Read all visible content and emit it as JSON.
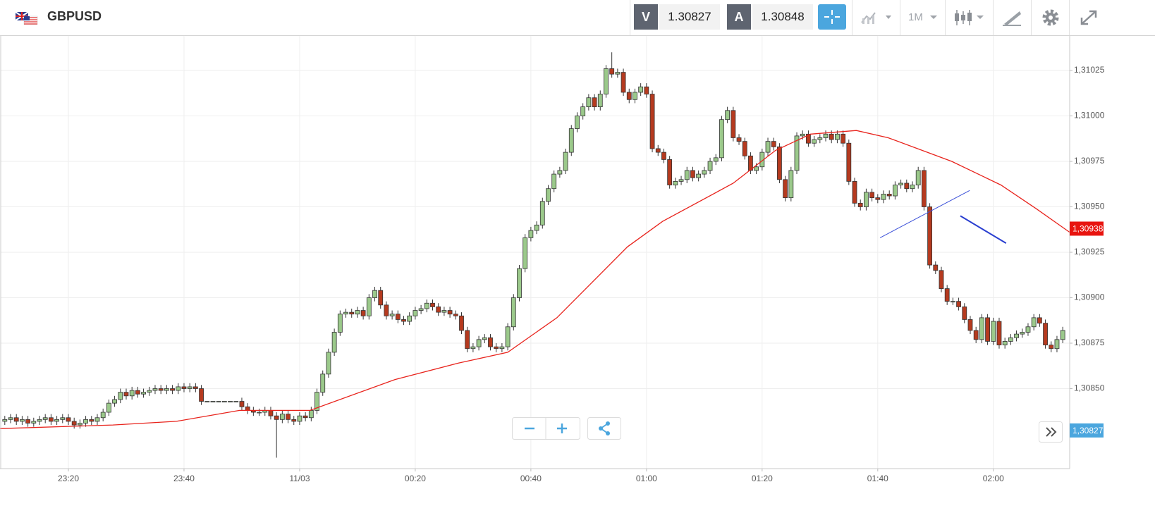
{
  "header": {
    "symbol": "GBPUSD",
    "bid_label": "V",
    "bid": 1.30827,
    "ask_label": "A",
    "ask": 1.30848,
    "timeframe": "1M"
  },
  "chart_data": {
    "type": "candlestick",
    "open": [
      1.30832,
      1.30833,
      1.30834,
      1.30832,
      1.30833,
      1.30831,
      1.30832,
      1.30833,
      1.30834,
      1.30832,
      1.30833,
      1.30834,
      1.30832,
      1.3083,
      1.30831,
      1.30833,
      1.30832,
      1.30834,
      1.30837,
      1.30842,
      1.30844,
      1.30848,
      1.30846,
      1.30849,
      1.30847,
      1.30848,
      1.30849,
      1.3085,
      1.30849,
      1.3085,
      1.30849,
      1.30851,
      1.3085,
      1.30851,
      1.3085,
      1.30843,
      1.30843,
      1.30843,
      1.30843,
      1.30843,
      1.30843,
      1.30843,
      1.3084,
      1.30838,
      1.30837,
      1.30837,
      1.30838,
      1.30835,
      1.30833,
      1.30836,
      1.30833,
      1.30832,
      1.30835,
      1.30834,
      1.30838,
      1.30848,
      1.30858,
      1.3087,
      1.30881,
      1.30891,
      1.30892,
      1.30891,
      1.30893,
      1.3089,
      1.309,
      1.30904,
      1.30896,
      1.3089,
      1.30891,
      1.30888,
      1.30887,
      1.3089,
      1.30893,
      1.30894,
      1.30897,
      1.30895,
      1.30892,
      1.30893,
      1.30891,
      1.3089,
      1.30882,
      1.30872,
      1.30873,
      1.30877,
      1.30878,
      1.30873,
      1.30872,
      1.30873,
      1.30884,
      1.309,
      1.30916,
      1.30933,
      1.30937,
      1.3094,
      1.30953,
      1.3096,
      1.30968,
      1.3097,
      1.3098,
      1.30993,
      1.31,
      1.31005,
      1.3101,
      1.31005,
      1.31012,
      1.31026,
      1.31023,
      1.31024,
      1.31013,
      1.31009,
      1.31013,
      1.31016,
      1.31012,
      1.30982,
      1.3098,
      1.30976,
      1.30962,
      1.30964,
      1.30965,
      1.3097,
      1.30966,
      1.30968,
      1.3097,
      1.30975,
      1.30977,
      1.30998,
      1.31003,
      1.30988,
      1.30986,
      1.30978,
      1.3097,
      1.30972,
      1.3098,
      1.30986,
      1.30983,
      1.30965,
      1.30955,
      1.3097,
      1.30989,
      1.3099,
      1.30985,
      1.30987,
      1.30988,
      1.3099,
      1.30987,
      1.3099,
      1.30985,
      1.30964,
      1.30952,
      1.3095,
      1.30958,
      1.30955,
      1.30954,
      1.30957,
      1.30956,
      1.30962,
      1.30963,
      1.3096,
      1.30962,
      1.3097,
      1.3095,
      1.30918,
      1.30915,
      1.30905,
      1.30898,
      1.30898,
      1.30895,
      1.30888,
      1.30882,
      1.30877,
      1.30889,
      1.30876,
      1.30887,
      1.30874,
      1.30876,
      1.30878,
      1.3088,
      1.30881,
      1.30884,
      1.30889,
      1.30886,
      1.30874,
      1.30872,
      1.30877
    ],
    "high": [
      1.30835,
      1.30836,
      1.30836,
      1.30835,
      1.30835,
      1.30834,
      1.30835,
      1.30836,
      1.30836,
      1.30835,
      1.30836,
      1.30836,
      1.30834,
      1.30833,
      1.30835,
      1.30835,
      1.30836,
      1.30839,
      1.30844,
      1.30846,
      1.3085,
      1.3085,
      1.30851,
      1.30851,
      1.3085,
      1.30851,
      1.30852,
      1.30852,
      1.30852,
      1.30852,
      1.30853,
      1.30853,
      1.30853,
      1.30853,
      1.30852,
      1.30843,
      1.30843,
      1.30843,
      1.30843,
      1.30843,
      1.30843,
      1.30845,
      1.30842,
      1.3084,
      1.30839,
      1.3084,
      1.3084,
      1.30837,
      1.30838,
      1.30838,
      1.30835,
      1.30837,
      1.30837,
      1.3084,
      1.3085,
      1.3086,
      1.30872,
      1.30883,
      1.30893,
      1.30894,
      1.30894,
      1.30895,
      1.30895,
      1.30902,
      1.30906,
      1.30906,
      1.30898,
      1.30893,
      1.30893,
      1.3089,
      1.30892,
      1.30895,
      1.30896,
      1.30899,
      1.30899,
      1.30897,
      1.30895,
      1.30895,
      1.30893,
      1.30892,
      1.30884,
      1.30875,
      1.30879,
      1.3088,
      1.3088,
      1.30875,
      1.30875,
      1.30886,
      1.30902,
      1.30918,
      1.30935,
      1.30939,
      1.30942,
      1.30955,
      1.30962,
      1.3097,
      1.30972,
      1.30982,
      1.30995,
      1.31002,
      1.31007,
      1.31012,
      1.31012,
      1.31014,
      1.31028,
      1.31035,
      1.31026,
      1.31026,
      1.31015,
      1.31015,
      1.31018,
      1.31018,
      1.31014,
      1.30984,
      1.30982,
      1.30978,
      1.30966,
      1.30967,
      1.30972,
      1.30972,
      1.3097,
      1.30972,
      1.30977,
      1.30979,
      1.31,
      1.31005,
      1.31005,
      1.3099,
      1.30988,
      1.3098,
      1.30974,
      1.30982,
      1.30988,
      1.30988,
      1.30985,
      1.30967,
      1.30972,
      1.30991,
      1.30992,
      1.30992,
      1.30989,
      1.3099,
      1.30992,
      1.30992,
      1.30992,
      1.30992,
      1.30987,
      1.30966,
      1.30954,
      1.3096,
      1.3096,
      1.30957,
      1.30959,
      1.30959,
      1.30964,
      1.30965,
      1.30965,
      1.30964,
      1.30972,
      1.30972,
      1.30952,
      1.3092,
      1.30917,
      1.30907,
      1.309,
      1.309,
      1.30897,
      1.3089,
      1.30884,
      1.30891,
      1.30891,
      1.30889,
      1.30889,
      1.30878,
      1.3088,
      1.30882,
      1.30883,
      1.30886,
      1.30891,
      1.30891,
      1.30888,
      1.30876,
      1.30879,
      1.30884
    ],
    "low": [
      1.3083,
      1.30831,
      1.3083,
      1.3083,
      1.30829,
      1.30829,
      1.3083,
      1.30831,
      1.3083,
      1.3083,
      1.30831,
      1.3083,
      1.30828,
      1.30828,
      1.30829,
      1.3083,
      1.3083,
      1.30832,
      1.30835,
      1.3084,
      1.30842,
      1.30844,
      1.30844,
      1.30845,
      1.30845,
      1.30846,
      1.30847,
      1.30847,
      1.30847,
      1.30847,
      1.30847,
      1.30848,
      1.30848,
      1.30848,
      1.30841,
      1.30843,
      1.30843,
      1.30843,
      1.30843,
      1.30843,
      1.30843,
      1.30838,
      1.30836,
      1.30835,
      1.30835,
      1.30835,
      1.30833,
      1.30812,
      1.30831,
      1.30831,
      1.3083,
      1.3083,
      1.30832,
      1.30832,
      1.30836,
      1.30846,
      1.30856,
      1.30868,
      1.30879,
      1.30889,
      1.30889,
      1.30889,
      1.30888,
      1.30888,
      1.30898,
      1.30894,
      1.30888,
      1.30888,
      1.30886,
      1.30885,
      1.30885,
      1.30888,
      1.30891,
      1.30892,
      1.30893,
      1.3089,
      1.3089,
      1.30889,
      1.30888,
      1.3088,
      1.3087,
      1.3087,
      1.30871,
      1.30875,
      1.30871,
      1.3087,
      1.3087,
      1.30871,
      1.30882,
      1.30898,
      1.30914,
      1.30931,
      1.30935,
      1.30938,
      1.30951,
      1.30958,
      1.30966,
      1.30968,
      1.30978,
      1.30991,
      1.30998,
      1.31003,
      1.31003,
      1.31003,
      1.3101,
      1.31021,
      1.31021,
      1.31011,
      1.31007,
      1.31007,
      1.31011,
      1.3101,
      1.3098,
      1.30978,
      1.30974,
      1.3096,
      1.3096,
      1.30962,
      1.30963,
      1.30964,
      1.30964,
      1.30966,
      1.30968,
      1.30973,
      1.30975,
      1.30996,
      1.30986,
      1.30984,
      1.30976,
      1.30968,
      1.30968,
      1.3097,
      1.30978,
      1.30981,
      1.30963,
      1.30953,
      1.30953,
      1.30968,
      1.30987,
      1.30983,
      1.30983,
      1.30985,
      1.30986,
      1.30985,
      1.30985,
      1.30983,
      1.30962,
      1.3095,
      1.30948,
      1.30948,
      1.30953,
      1.30952,
      1.30952,
      1.30954,
      1.30954,
      1.3096,
      1.30958,
      1.30958,
      1.3096,
      1.30948,
      1.30916,
      1.30913,
      1.30903,
      1.30896,
      1.30896,
      1.30893,
      1.30886,
      1.3088,
      1.30875,
      1.30875,
      1.30874,
      1.30874,
      1.30872,
      1.30872,
      1.30874,
      1.30876,
      1.30878,
      1.30879,
      1.30882,
      1.30884,
      1.30872,
      1.3087,
      1.3087,
      1.30875
    ],
    "close": [
      1.30833,
      1.30834,
      1.30832,
      1.30833,
      1.30831,
      1.30832,
      1.30833,
      1.30834,
      1.30832,
      1.30833,
      1.30834,
      1.30832,
      1.3083,
      1.30831,
      1.30833,
      1.30832,
      1.30834,
      1.30837,
      1.30842,
      1.30844,
      1.30848,
      1.30846,
      1.30849,
      1.30847,
      1.30848,
      1.30849,
      1.3085,
      1.30849,
      1.3085,
      1.30849,
      1.30851,
      1.3085,
      1.30851,
      1.3085,
      1.30843,
      1.30843,
      1.30843,
      1.30843,
      1.30843,
      1.30843,
      1.30843,
      1.3084,
      1.30838,
      1.30837,
      1.30837,
      1.30838,
      1.30835,
      1.30833,
      1.30836,
      1.30833,
      1.30832,
      1.30835,
      1.30834,
      1.30838,
      1.30848,
      1.30858,
      1.3087,
      1.30881,
      1.30891,
      1.30892,
      1.30891,
      1.30893,
      1.3089,
      1.309,
      1.30904,
      1.30896,
      1.3089,
      1.30891,
      1.30888,
      1.30887,
      1.3089,
      1.30893,
      1.30894,
      1.30897,
      1.30895,
      1.30892,
      1.30893,
      1.30891,
      1.3089,
      1.30882,
      1.30872,
      1.30873,
      1.30877,
      1.30878,
      1.30873,
      1.30872,
      1.30873,
      1.30884,
      1.309,
      1.30916,
      1.30933,
      1.30937,
      1.3094,
      1.30953,
      1.3096,
      1.30968,
      1.3097,
      1.3098,
      1.30993,
      1.31,
      1.31005,
      1.3101,
      1.31005,
      1.31012,
      1.31026,
      1.31023,
      1.31024,
      1.31013,
      1.31009,
      1.31013,
      1.31016,
      1.31012,
      1.30982,
      1.3098,
      1.30976,
      1.30962,
      1.30964,
      1.30965,
      1.3097,
      1.30966,
      1.30968,
      1.3097,
      1.30975,
      1.30977,
      1.30998,
      1.31003,
      1.30988,
      1.30986,
      1.30978,
      1.3097,
      1.30972,
      1.3098,
      1.30986,
      1.30983,
      1.30965,
      1.30955,
      1.3097,
      1.30989,
      1.3099,
      1.30985,
      1.30987,
      1.30988,
      1.3099,
      1.30987,
      1.3099,
      1.30985,
      1.30964,
      1.30952,
      1.3095,
      1.30958,
      1.30955,
      1.30954,
      1.30957,
      1.30956,
      1.30962,
      1.30963,
      1.3096,
      1.30962,
      1.3097,
      1.3095,
      1.30918,
      1.30915,
      1.30905,
      1.30898,
      1.30898,
      1.30895,
      1.30888,
      1.30882,
      1.30877,
      1.30889,
      1.30876,
      1.30887,
      1.30874,
      1.30876,
      1.30878,
      1.3088,
      1.30881,
      1.30884,
      1.30889,
      1.30886,
      1.30874,
      1.30872,
      1.30877,
      1.30882
    ],
    "up_color": "#9bc98b",
    "down_color": "#b53a1f",
    "xlim": [
      -0.83,
      184.2
    ],
    "xticks": [
      {
        "value": 11,
        "label": "23:20"
      },
      {
        "value": 31,
        "label": "23:40"
      },
      {
        "value": 51,
        "label": "11/03"
      },
      {
        "value": 71,
        "label": "00:20"
      },
      {
        "value": 91,
        "label": "00:40"
      },
      {
        "value": 111,
        "label": "01:00"
      },
      {
        "value": 131,
        "label": "01:20"
      },
      {
        "value": 151,
        "label": "01:40"
      },
      {
        "value": 171,
        "label": "02:00"
      }
    ],
    "ylim": [
      1.30806,
      1.31044
    ],
    "yticks": [
      {
        "value": 1.3085,
        "label": "1,30850"
      },
      {
        "value": 1.30875,
        "label": "1,30875"
      },
      {
        "value": 1.309,
        "label": "1,30900"
      },
      {
        "value": 1.30925,
        "label": "1,30925"
      },
      {
        "value": 1.3095,
        "label": "1,30950"
      },
      {
        "value": 1.30975,
        "label": "1,30975"
      },
      {
        "value": 1.31,
        "label": "1,31000"
      },
      {
        "value": 1.31025,
        "label": "1,31025"
      }
    ],
    "grid": true,
    "moving_average": {
      "color": "#e8231c",
      "x": [
        -0.83,
        18.7,
        29.7,
        40.6,
        52.8,
        67.5,
        78.4,
        87,
        95.5,
        107.7,
        113.8,
        126,
        133.3,
        139.4,
        147.3,
        152.8,
        163.8,
        172.3,
        178.4,
        184.2
      ],
      "values": [
        1.30828,
        1.3083,
        1.30832,
        1.30838,
        1.30838,
        1.30855,
        1.30864,
        1.3087,
        1.30889,
        1.30928,
        1.30942,
        1.30963,
        1.30981,
        1.3099,
        1.30992,
        1.30988,
        1.30975,
        1.30962,
        1.30949,
        1.30936
      ]
    },
    "trendlines": [
      {
        "color": "#3a4fd8",
        "x": [
          151.4,
          166.9
        ],
        "values": [
          1.30933,
          1.30959
        ]
      },
      {
        "color": "#2a3fd0",
        "x": [
          165.3,
          173.2
        ],
        "values": [
          1.30945,
          1.3093
        ]
      }
    ],
    "price_tags": [
      {
        "value": 1.30938,
        "label": "1,30938",
        "color": "#e8140f"
      },
      {
        "value": 1.30827,
        "label": "1,30827",
        "color": "#4ba6de"
      }
    ]
  }
}
